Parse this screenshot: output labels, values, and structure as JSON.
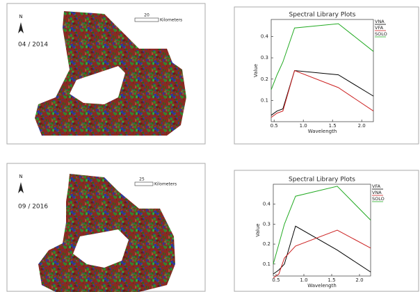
{
  "maps": [
    {
      "north": "N",
      "date": "04 / 2014",
      "scale": "20",
      "unit": "Kilometers"
    },
    {
      "north": "N",
      "date": "09 / 2016",
      "scale": "25",
      "unit": "Kilometers"
    }
  ],
  "chart_data": [
    {
      "type": "line",
      "title": "Spectral Library Plots",
      "x_label": "Wavelength",
      "y_label": "Value",
      "x": [
        0.45,
        0.55,
        0.65,
        0.85,
        1.6,
        2.2
      ],
      "series": [
        {
          "name": "VNA",
          "color": "#000000",
          "values": [
            0.03,
            0.05,
            0.06,
            0.24,
            0.22,
            0.12
          ]
        },
        {
          "name": "VFA",
          "color": "#cc2222",
          "values": [
            0.02,
            0.04,
            0.05,
            0.24,
            0.16,
            0.05
          ]
        },
        {
          "name": "SOLO",
          "color": "#22aa22",
          "values": [
            0.15,
            0.22,
            0.28,
            0.44,
            0.46,
            0.33
          ]
        }
      ],
      "xlim": [
        0.45,
        2.2
      ],
      "ylim": [
        0,
        0.48
      ],
      "xticks": [
        0.5,
        {
          "value": 1.0,
          "label": "1.0"
        },
        1.5,
        {
          "value": 2.0,
          "label": "2.0"
        }
      ],
      "yticks": [
        0.1,
        0.2,
        0.3,
        0.4
      ]
    },
    {
      "type": "line",
      "title": "Spectral Library Plots",
      "x_label": "Wavelength",
      "y_label": "Value",
      "x": [
        0.45,
        0.55,
        0.65,
        0.85,
        1.6,
        2.2
      ],
      "series": [
        {
          "name": "VFA",
          "color": "#000000",
          "values": [
            0.05,
            0.07,
            0.1,
            0.29,
            0.17,
            0.06
          ]
        },
        {
          "name": "VNA",
          "color": "#cc2222",
          "values": [
            0.03,
            0.05,
            0.13,
            0.19,
            0.27,
            0.18
          ]
        },
        {
          "name": "SOLO",
          "color": "#22aa22",
          "values": [
            0.1,
            0.2,
            0.3,
            0.44,
            0.49,
            0.32
          ]
        }
      ],
      "xlim": [
        0.45,
        2.2
      ],
      "ylim": [
        0.04,
        0.5
      ],
      "xticks": [
        0.5,
        {
          "value": 1.0,
          "label": "1.0"
        },
        1.5,
        {
          "value": 2.0,
          "label": "2.0"
        }
      ],
      "yticks": [
        0.1,
        0.2,
        0.3,
        0.4
      ]
    }
  ]
}
